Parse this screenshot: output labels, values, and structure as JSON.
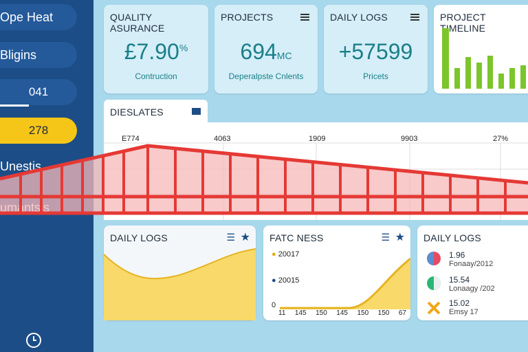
{
  "sidebar": {
    "items": [
      "Ope Heat",
      "Bligins",
      "041",
      "278",
      "Unestis",
      "umantsis"
    ]
  },
  "cards": [
    {
      "title": "QUALITY ASURANCE",
      "value": "£7.90",
      "unit": "%",
      "caption": "Contruction"
    },
    {
      "title": "PROJECTS",
      "value": "694",
      "unit": "MC",
      "caption": "Deperalpste Cnlents"
    },
    {
      "title": "DAILY LOGS",
      "value": "+57599",
      "caption": "Pricets"
    },
    {
      "title": "PROJECT TIMELINE"
    }
  ],
  "panel": {
    "title": "DIESLATES",
    "columns": [
      "E774",
      "4063",
      "1909",
      "9903",
      "27%"
    ]
  },
  "bottom": [
    {
      "title": "DAILY LOGS"
    },
    {
      "title": "FATC NESS",
      "legend": [
        "20017",
        "20015"
      ],
      "axis_label": "0",
      "x_labels": [
        "11",
        "145",
        "150",
        "145",
        "150",
        "150",
        "67"
      ]
    },
    {
      "title": "DAILY LOGS",
      "entries": [
        {
          "value": "1.96",
          "label": "Fonaay/2012"
        },
        {
          "value": "15.54",
          "label": "Lonaagy /202"
        },
        {
          "value": "15.02",
          "label": "Emsy 17"
        }
      ]
    }
  ]
}
